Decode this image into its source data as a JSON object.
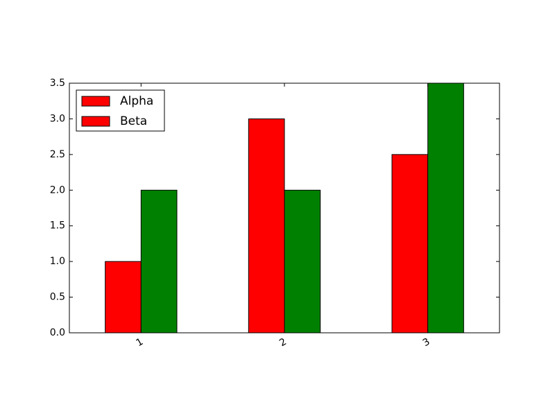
{
  "chart_data": {
    "type": "bar",
    "categories": [
      "1",
      "2",
      "3"
    ],
    "series": [
      {
        "name": "Alpha",
        "color": "#ff0000",
        "values": [
          1,
          3,
          2.5
        ]
      },
      {
        "name": "Beta",
        "color": "#008000",
        "values": [
          2,
          2,
          3.5
        ]
      }
    ],
    "legend_swatch_color": "#ff0000",
    "legend": "upper left",
    "ylim": [
      0,
      3.5
    ],
    "yticks": [
      {
        "value": 0,
        "label": "0.0"
      },
      0.5,
      {
        "value": 1,
        "label": "1.0"
      },
      1.5,
      {
        "value": 2,
        "label": "2.0"
      },
      2.5,
      {
        "value": 3,
        "label": "3.0"
      },
      3.5
    ],
    "grid": false
  }
}
